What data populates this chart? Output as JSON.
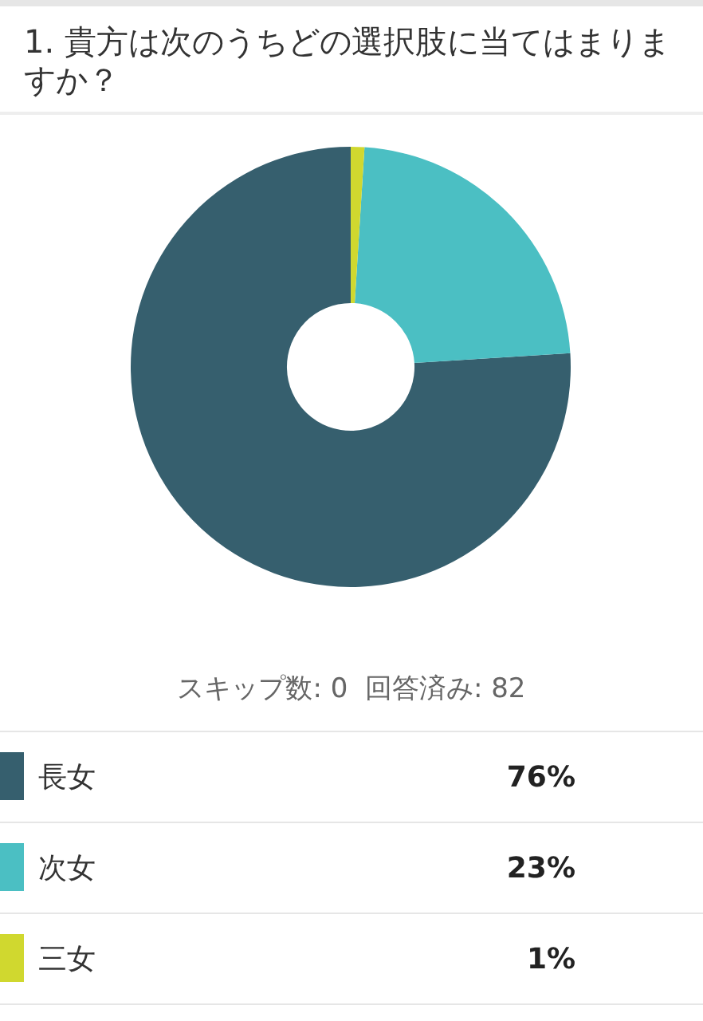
{
  "chart_data": {
    "type": "donut",
    "title": "1. 貴方は次のうちどの選択肢に当てはまりますか？",
    "annotations": [
      "スキップ数: 0  回答済み: 82"
    ],
    "categories": [
      "長女",
      "次女",
      "三女"
    ],
    "values": [
      76,
      23,
      1
    ],
    "colors": [
      "#365f6e",
      "#4bbfc3",
      "#d0d82f"
    ],
    "value_labels": [
      "76%",
      "23%",
      "1%"
    ],
    "legend": "bottom"
  }
}
